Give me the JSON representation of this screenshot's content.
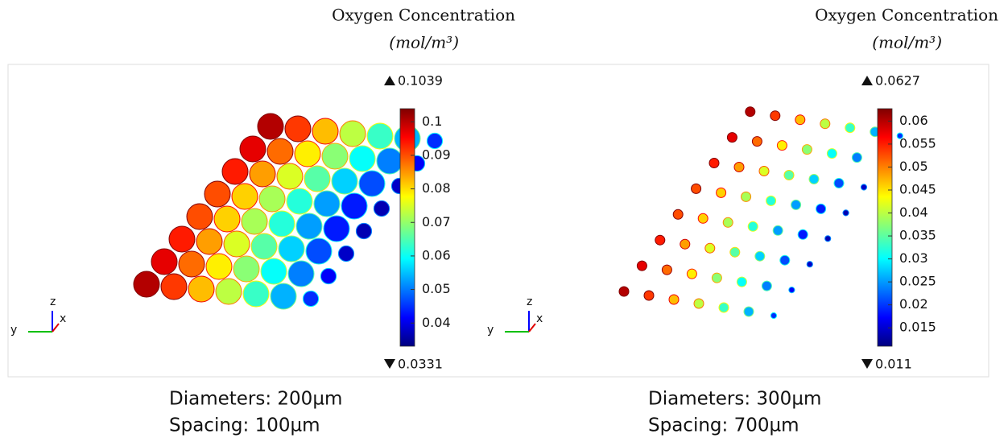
{
  "panels": [
    {
      "title": "Oxygen Concentration",
      "unit": "(mol/m³)",
      "max": 0.1039,
      "min": 0.0331,
      "ticks": [
        0.1,
        0.09,
        0.08,
        0.07,
        0.06,
        0.05,
        0.04
      ],
      "axes": [
        "z",
        "y",
        "x"
      ],
      "caption": [
        "Diameters: 200µm",
        "Spacing: 100µm"
      ]
    },
    {
      "title": "Oxygen Concentration",
      "unit": "(mol/m³)",
      "max": 0.0627,
      "min": 0.011,
      "ticks": [
        0.06,
        0.055,
        0.05,
        0.045,
        0.04,
        0.035,
        0.03,
        0.025,
        0.02,
        0.015
      ],
      "axes": [
        "z",
        "y",
        "x"
      ],
      "caption": [
        "Diameters: 300µm",
        "Spacing: 700µm"
      ]
    }
  ]
}
